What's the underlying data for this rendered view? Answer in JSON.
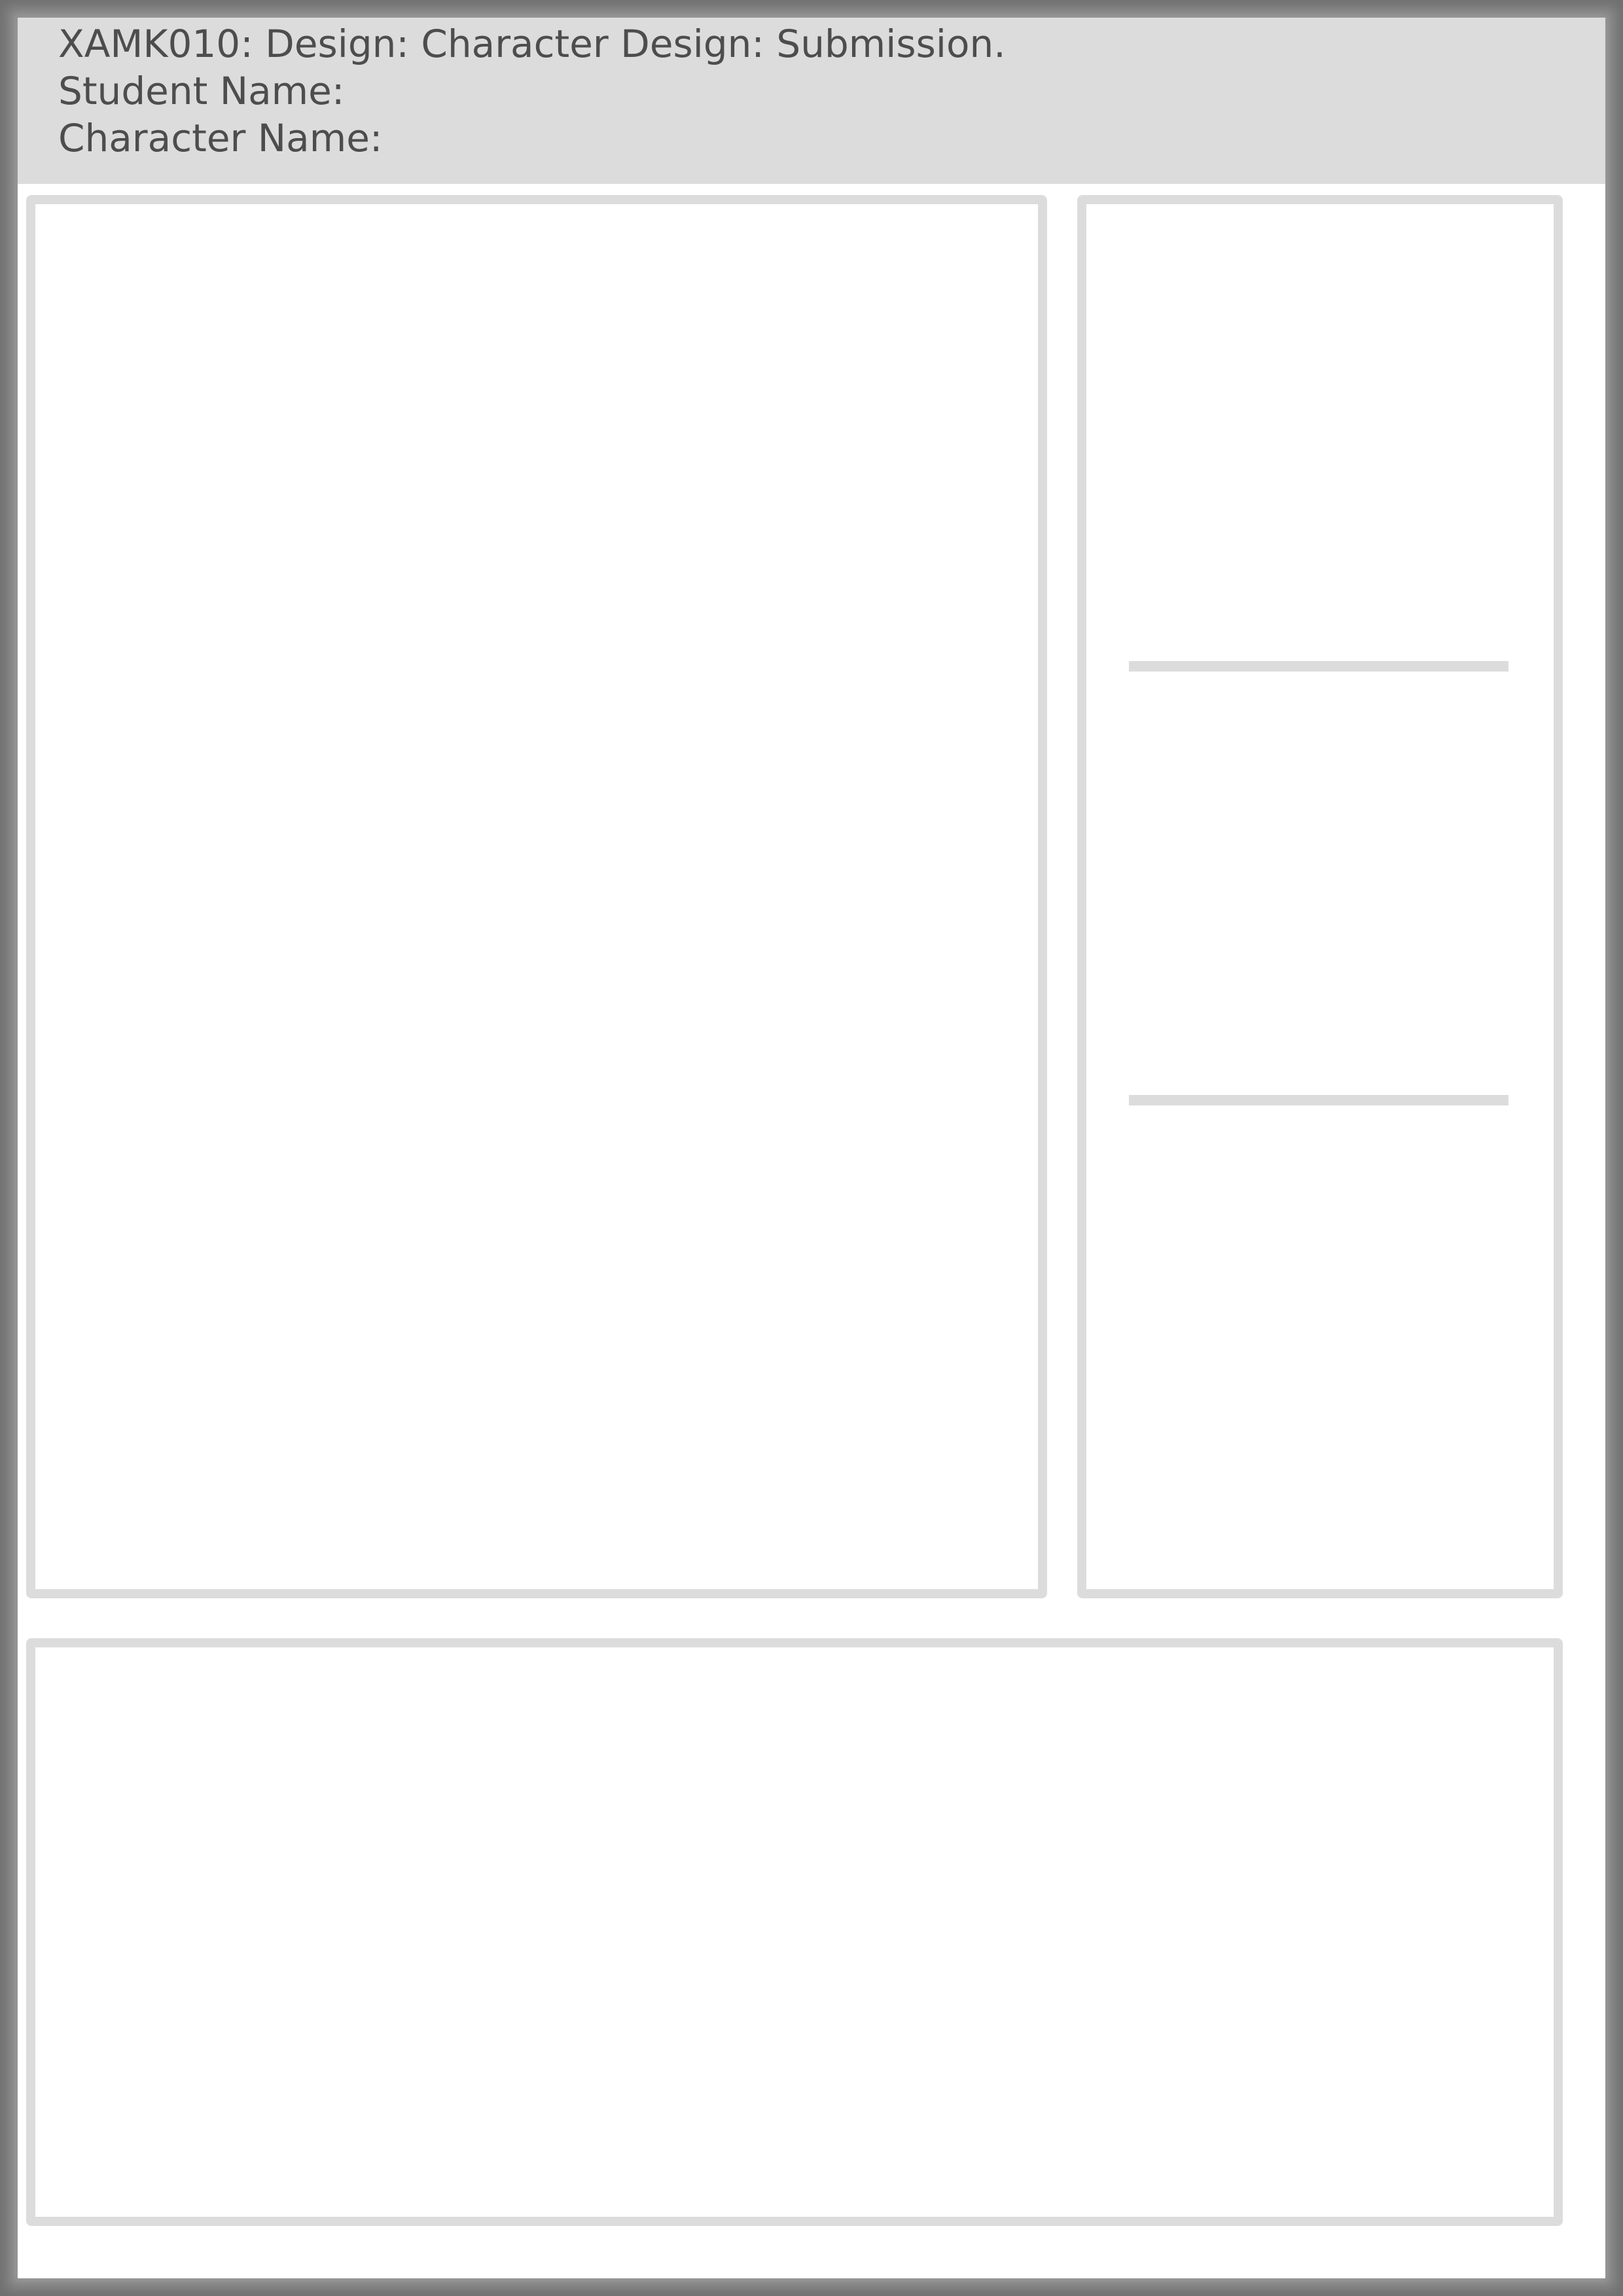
{
  "header": {
    "title": "XAMK010: Design: Character Design: Submission.",
    "student_label": "Student Name:",
    "character_label": "Character Name:"
  },
  "colors": {
    "frame": "#8a8a8a",
    "header_bg": "#dcdcdc",
    "text": "#4d4d4d",
    "panel_border": "#dcdcdc",
    "paper": "#ffffff"
  }
}
